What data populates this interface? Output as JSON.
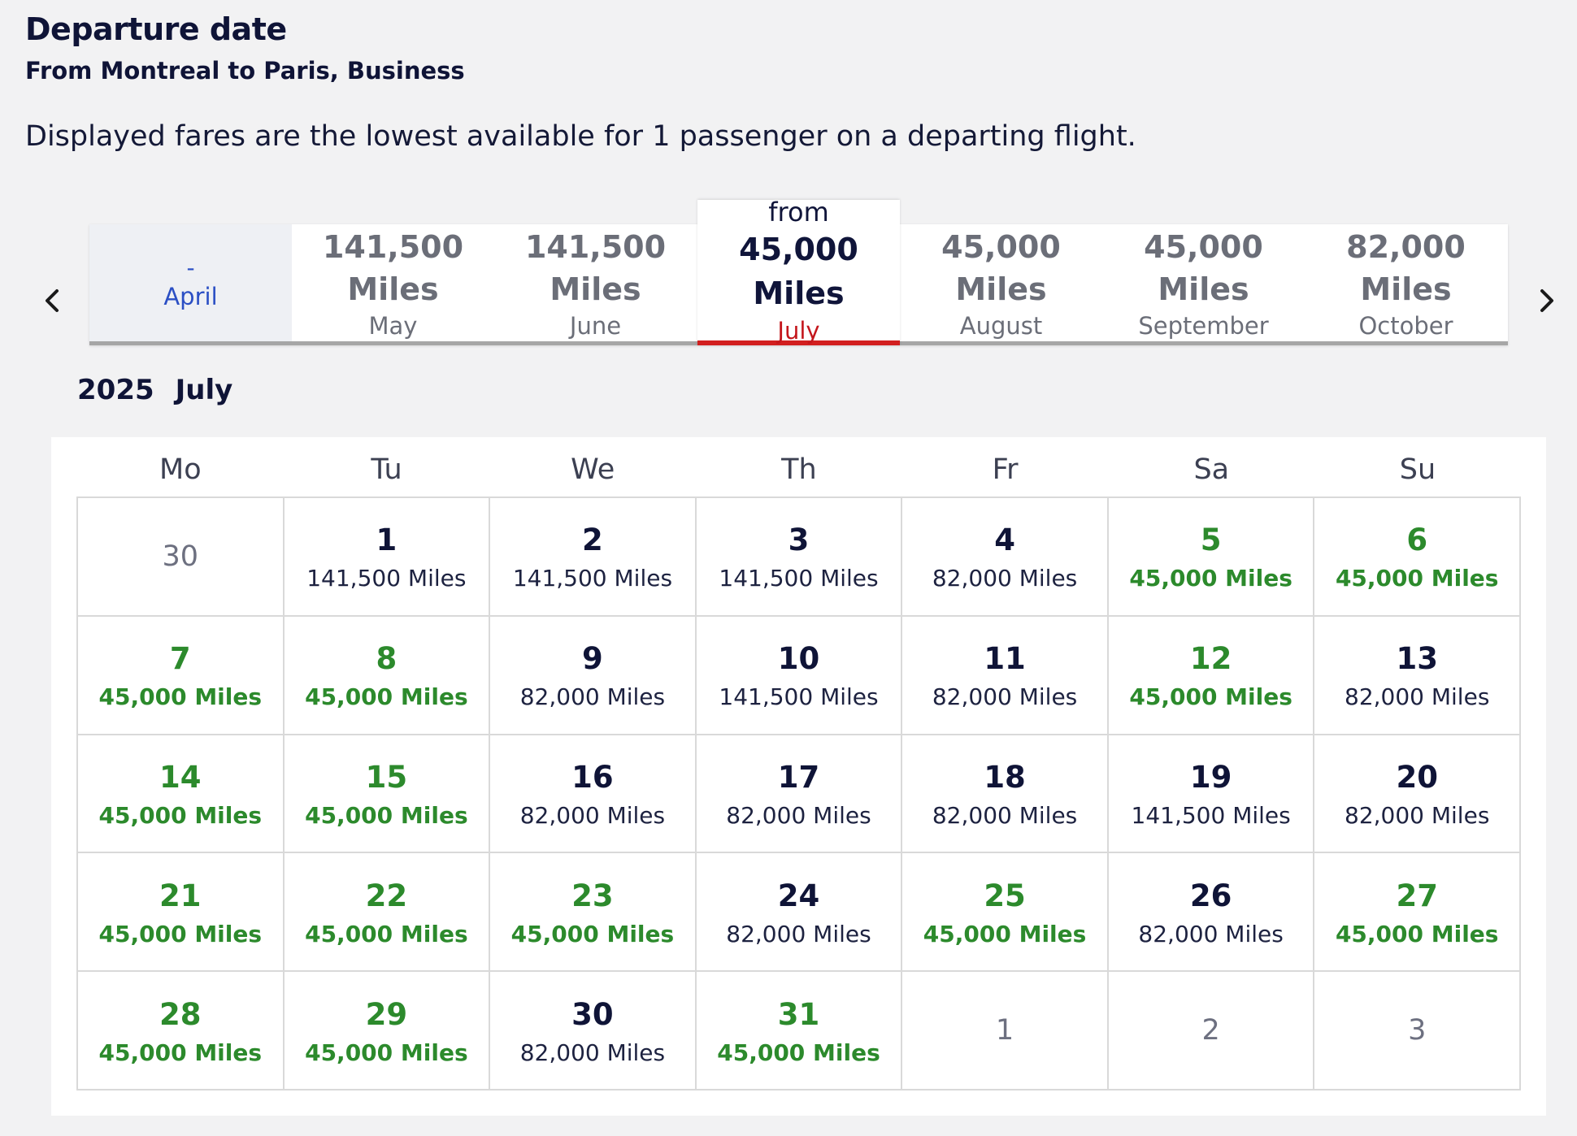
{
  "header": {
    "title": "Departure date",
    "subtitle": "From Montreal to Paris, Business",
    "info": "Displayed fares are the lowest available for 1 passenger on a departing flight."
  },
  "month_nav": {
    "prev_icon": "chevron-left-icon",
    "next_icon": "chevron-right-icon",
    "tabs": [
      {
        "price": "-",
        "month": "April",
        "state": "disabled"
      },
      {
        "price": "141,500 Miles",
        "month": "May"
      },
      {
        "price": "141,500 Miles",
        "month": "June"
      },
      {
        "from": "from",
        "price": "45,000 Miles",
        "month": "July",
        "state": "active"
      },
      {
        "price": "45,000 Miles",
        "month": "August"
      },
      {
        "price": "45,000 Miles",
        "month": "September"
      },
      {
        "price": "82,000 Miles",
        "month": "October"
      }
    ]
  },
  "calendar": {
    "year": "2025",
    "month": "July",
    "weekdays": [
      "Mo",
      "Tu",
      "We",
      "Th",
      "Fr",
      "Sa",
      "Su"
    ],
    "colors": {
      "lowest_fare": "#2c8a2c",
      "active_underline": "#d21f1f"
    },
    "cells": [
      {
        "day": "30",
        "out": true
      },
      {
        "day": "1",
        "miles": "141,500 Miles"
      },
      {
        "day": "2",
        "miles": "141,500 Miles"
      },
      {
        "day": "3",
        "miles": "141,500 Miles"
      },
      {
        "day": "4",
        "miles": "82,000 Miles"
      },
      {
        "day": "5",
        "miles": "45,000 Miles",
        "low": true
      },
      {
        "day": "6",
        "miles": "45,000 Miles",
        "low": true
      },
      {
        "day": "7",
        "miles": "45,000 Miles",
        "low": true
      },
      {
        "day": "8",
        "miles": "45,000 Miles",
        "low": true
      },
      {
        "day": "9",
        "miles": "82,000 Miles"
      },
      {
        "day": "10",
        "miles": "141,500 Miles"
      },
      {
        "day": "11",
        "miles": "82,000 Miles"
      },
      {
        "day": "12",
        "miles": "45,000 Miles",
        "low": true
      },
      {
        "day": "13",
        "miles": "82,000 Miles"
      },
      {
        "day": "14",
        "miles": "45,000 Miles",
        "low": true
      },
      {
        "day": "15",
        "miles": "45,000 Miles",
        "low": true
      },
      {
        "day": "16",
        "miles": "82,000 Miles"
      },
      {
        "day": "17",
        "miles": "82,000 Miles"
      },
      {
        "day": "18",
        "miles": "82,000 Miles"
      },
      {
        "day": "19",
        "miles": "141,500 Miles"
      },
      {
        "day": "20",
        "miles": "82,000 Miles"
      },
      {
        "day": "21",
        "miles": "45,000 Miles",
        "low": true
      },
      {
        "day": "22",
        "miles": "45,000 Miles",
        "low": true
      },
      {
        "day": "23",
        "miles": "45,000 Miles",
        "low": true
      },
      {
        "day": "24",
        "miles": "82,000 Miles"
      },
      {
        "day": "25",
        "miles": "45,000 Miles",
        "low": true
      },
      {
        "day": "26",
        "miles": "82,000 Miles"
      },
      {
        "day": "27",
        "miles": "45,000 Miles",
        "low": true
      },
      {
        "day": "28",
        "miles": "45,000 Miles",
        "low": true
      },
      {
        "day": "29",
        "miles": "45,000 Miles",
        "low": true
      },
      {
        "day": "30",
        "miles": "82,000 Miles"
      },
      {
        "day": "31",
        "miles": "45,000 Miles",
        "low": true
      },
      {
        "day": "1",
        "out": true
      },
      {
        "day": "2",
        "out": true
      },
      {
        "day": "3",
        "out": true
      }
    ]
  }
}
